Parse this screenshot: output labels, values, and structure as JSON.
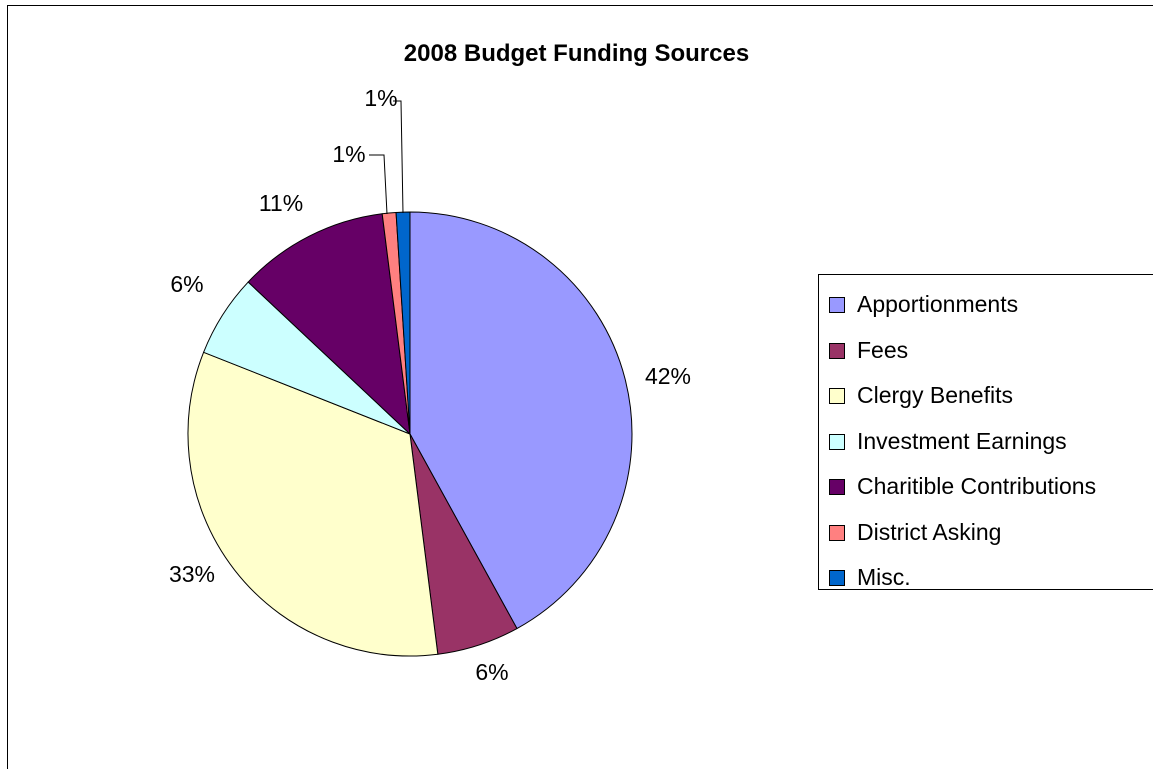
{
  "chart_data": {
    "type": "pie",
    "title": "2008 Budget Funding Sources",
    "categories": [
      "Apportionments",
      "Fees",
      "Clergy Benefits",
      "Investment Earnings",
      "Charitible Contributions",
      "District Asking",
      "Misc."
    ],
    "values": [
      42,
      6,
      33,
      6,
      11,
      1,
      1
    ],
    "labels": [
      "42%",
      "6%",
      "33%",
      "6%",
      "11%",
      "1%",
      "1%"
    ],
    "colors": [
      "#9999FF",
      "#993366",
      "#FFFFCC",
      "#CCFFFF",
      "#660066",
      "#FF8080",
      "#0066CC"
    ],
    "legend_position": "right",
    "start": "12 o'clock",
    "direction": "clockwise"
  }
}
